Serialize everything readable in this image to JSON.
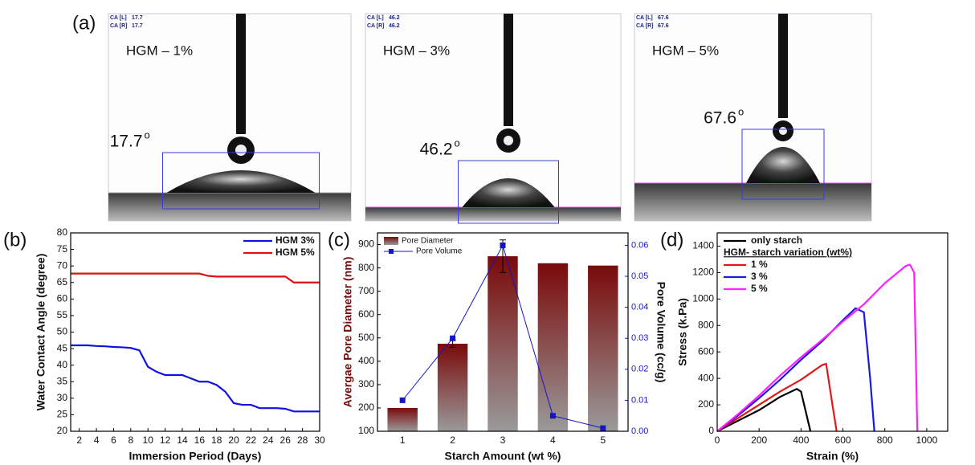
{
  "panel_labels": [
    "(a)",
    "(b)",
    "(c)",
    "(d)"
  ],
  "images": [
    {
      "title": "HGM – 1%",
      "angle": "17.7",
      "degree_mark": "o",
      "ca_lines": [
        [
          "CA [L]",
          "17.7"
        ],
        [
          "CA [R]",
          "17.7"
        ]
      ]
    },
    {
      "title": "HGM – 3%",
      "angle": "46.2",
      "degree_mark": "o",
      "ca_lines": [
        [
          "CA [L]",
          "46.2"
        ],
        [
          "CA [R]",
          "46.2"
        ]
      ]
    },
    {
      "title": "HGM – 5%",
      "angle": "67.6",
      "degree_mark": "o",
      "ca_lines": [
        [
          "CA [L]",
          "67.6"
        ],
        [
          "CA [R]",
          "67.6"
        ]
      ]
    }
  ],
  "chart_data": [
    {
      "type": "line",
      "x_label": "Immersion Period (Days)",
      "y_label": "Water Contact Angle (degree)",
      "x": [
        1,
        2,
        3,
        4,
        5,
        6,
        7,
        8,
        9,
        10,
        11,
        12,
        13,
        14,
        15,
        16,
        17,
        18,
        19,
        20,
        21,
        22,
        23,
        24,
        25,
        26,
        27,
        28,
        29,
        30
      ],
      "xlim": [
        1,
        30
      ],
      "xticks": [
        2,
        4,
        6,
        8,
        10,
        12,
        14,
        16,
        18,
        20,
        22,
        24,
        26,
        28,
        30
      ],
      "ylim": [
        20,
        80
      ],
      "yticks": [
        20,
        25,
        30,
        35,
        40,
        45,
        50,
        55,
        60,
        65,
        70,
        75,
        80
      ],
      "legend": "upper right",
      "series": [
        {
          "name": "HGM 3%",
          "color": "#1010e0",
          "values": [
            46,
            46,
            46,
            45.8,
            45.7,
            45.5,
            45.4,
            45.2,
            44.5,
            39.5,
            38,
            37,
            37,
            37,
            36,
            35,
            35,
            34,
            32,
            28.5,
            28,
            28,
            27,
            27,
            27,
            26.8,
            26,
            26,
            26,
            26
          ]
        },
        {
          "name": "HGM 5%",
          "color": "#e01010",
          "values": [
            67.7,
            67.7,
            67.7,
            67.7,
            67.7,
            67.7,
            67.7,
            67.7,
            67.7,
            67.7,
            67.7,
            67.7,
            67.7,
            67.7,
            67.7,
            67.7,
            67,
            66.8,
            66.8,
            66.8,
            66.8,
            66.8,
            66.8,
            66.8,
            66.8,
            66.8,
            65,
            65,
            65,
            65
          ]
        }
      ]
    },
    {
      "type": "bar",
      "x_label": "Starch Amount (wt %)",
      "y_label": "Avergae Pore Diameter (nm)",
      "y2_label": "Pore Volume (cc/g)",
      "categories": [
        "1",
        "2",
        "3",
        "4",
        "5"
      ],
      "ylim": [
        100,
        950
      ],
      "yticks": [
        100,
        200,
        300,
        400,
        500,
        600,
        700,
        800,
        900
      ],
      "y2lim": [
        0,
        0.064
      ],
      "y2ticks": [
        {
          "value": 0,
          "label": "0.00"
        },
        {
          "value": 0.01,
          "label": "0.01"
        },
        {
          "value": 0.02,
          "label": "0.02"
        },
        {
          "value": 0.03,
          "label": "0.03"
        },
        {
          "value": 0.04,
          "label": "0.04"
        },
        {
          "value": 0.05,
          "label": "0.05"
        },
        {
          "value": 0.06,
          "label": "0.06"
        }
      ],
      "legend": "upper left",
      "series": [
        {
          "name": "Pore Diameter",
          "color": "#7a0a0a",
          "values": [
            200,
            475,
            850,
            820,
            810
          ],
          "errors": [
            null,
            15,
            70,
            null,
            null
          ]
        },
        {
          "name": "Pore Volume",
          "color": "#1414c8",
          "type": "line",
          "axis": "y2",
          "values": [
            0.01,
            0.03,
            0.06,
            0.005,
            0.001
          ]
        }
      ]
    },
    {
      "type": "line",
      "x_label": "Strain (%)",
      "y_label": "Stress (k.Pa)",
      "xlim": [
        0,
        1100
      ],
      "xticks": [
        0,
        200,
        400,
        600,
        800,
        1000
      ],
      "ylim": [
        0,
        1500
      ],
      "yticks": [
        0,
        200,
        400,
        600,
        800,
        1000,
        1200,
        1400
      ],
      "legend": "upper left",
      "legend_title": "HGM- starch variation (wt%)",
      "series": [
        {
          "name": "only starch",
          "color": "#000000",
          "x": [
            0,
            100,
            200,
            300,
            380,
            400,
            430,
            445
          ],
          "values": [
            0,
            80,
            160,
            260,
            320,
            300,
            100,
            0
          ]
        },
        {
          "name": "1 %",
          "color": "#e01818",
          "x": [
            0,
            100,
            200,
            300,
            400,
            500,
            520,
            550,
            570
          ],
          "values": [
            0,
            100,
            200,
            300,
            390,
            500,
            510,
            200,
            0
          ]
        },
        {
          "name": "3 %",
          "color": "#1a1ae0",
          "x": [
            0,
            100,
            200,
            300,
            400,
            500,
            600,
            660,
            700,
            730,
            750
          ],
          "values": [
            0,
            120,
            250,
            390,
            540,
            680,
            840,
            930,
            900,
            400,
            0
          ]
        },
        {
          "name": "5 %",
          "color": "#ff20ff",
          "x": [
            0,
            100,
            200,
            300,
            400,
            500,
            600,
            700,
            800,
            900,
            920,
            940,
            950,
            955
          ],
          "values": [
            0,
            130,
            270,
            420,
            560,
            690,
            830,
            960,
            1120,
            1250,
            1260,
            1200,
            400,
            0
          ]
        }
      ]
    }
  ]
}
